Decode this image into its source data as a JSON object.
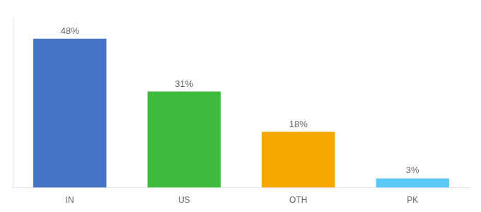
{
  "chart_data": {
    "type": "bar",
    "categories": [
      "IN",
      "US",
      "OTH",
      "PK"
    ],
    "values": [
      48,
      31,
      18,
      3
    ],
    "value_labels": [
      "48%",
      "31%",
      "18%",
      "3%"
    ],
    "colors": [
      "#4472c4",
      "#3dbb3d",
      "#f5a800",
      "#5bc8f5"
    ],
    "ylim": [
      0,
      55
    ],
    "data_labels": true,
    "tick_labels": "x",
    "grid": false
  }
}
